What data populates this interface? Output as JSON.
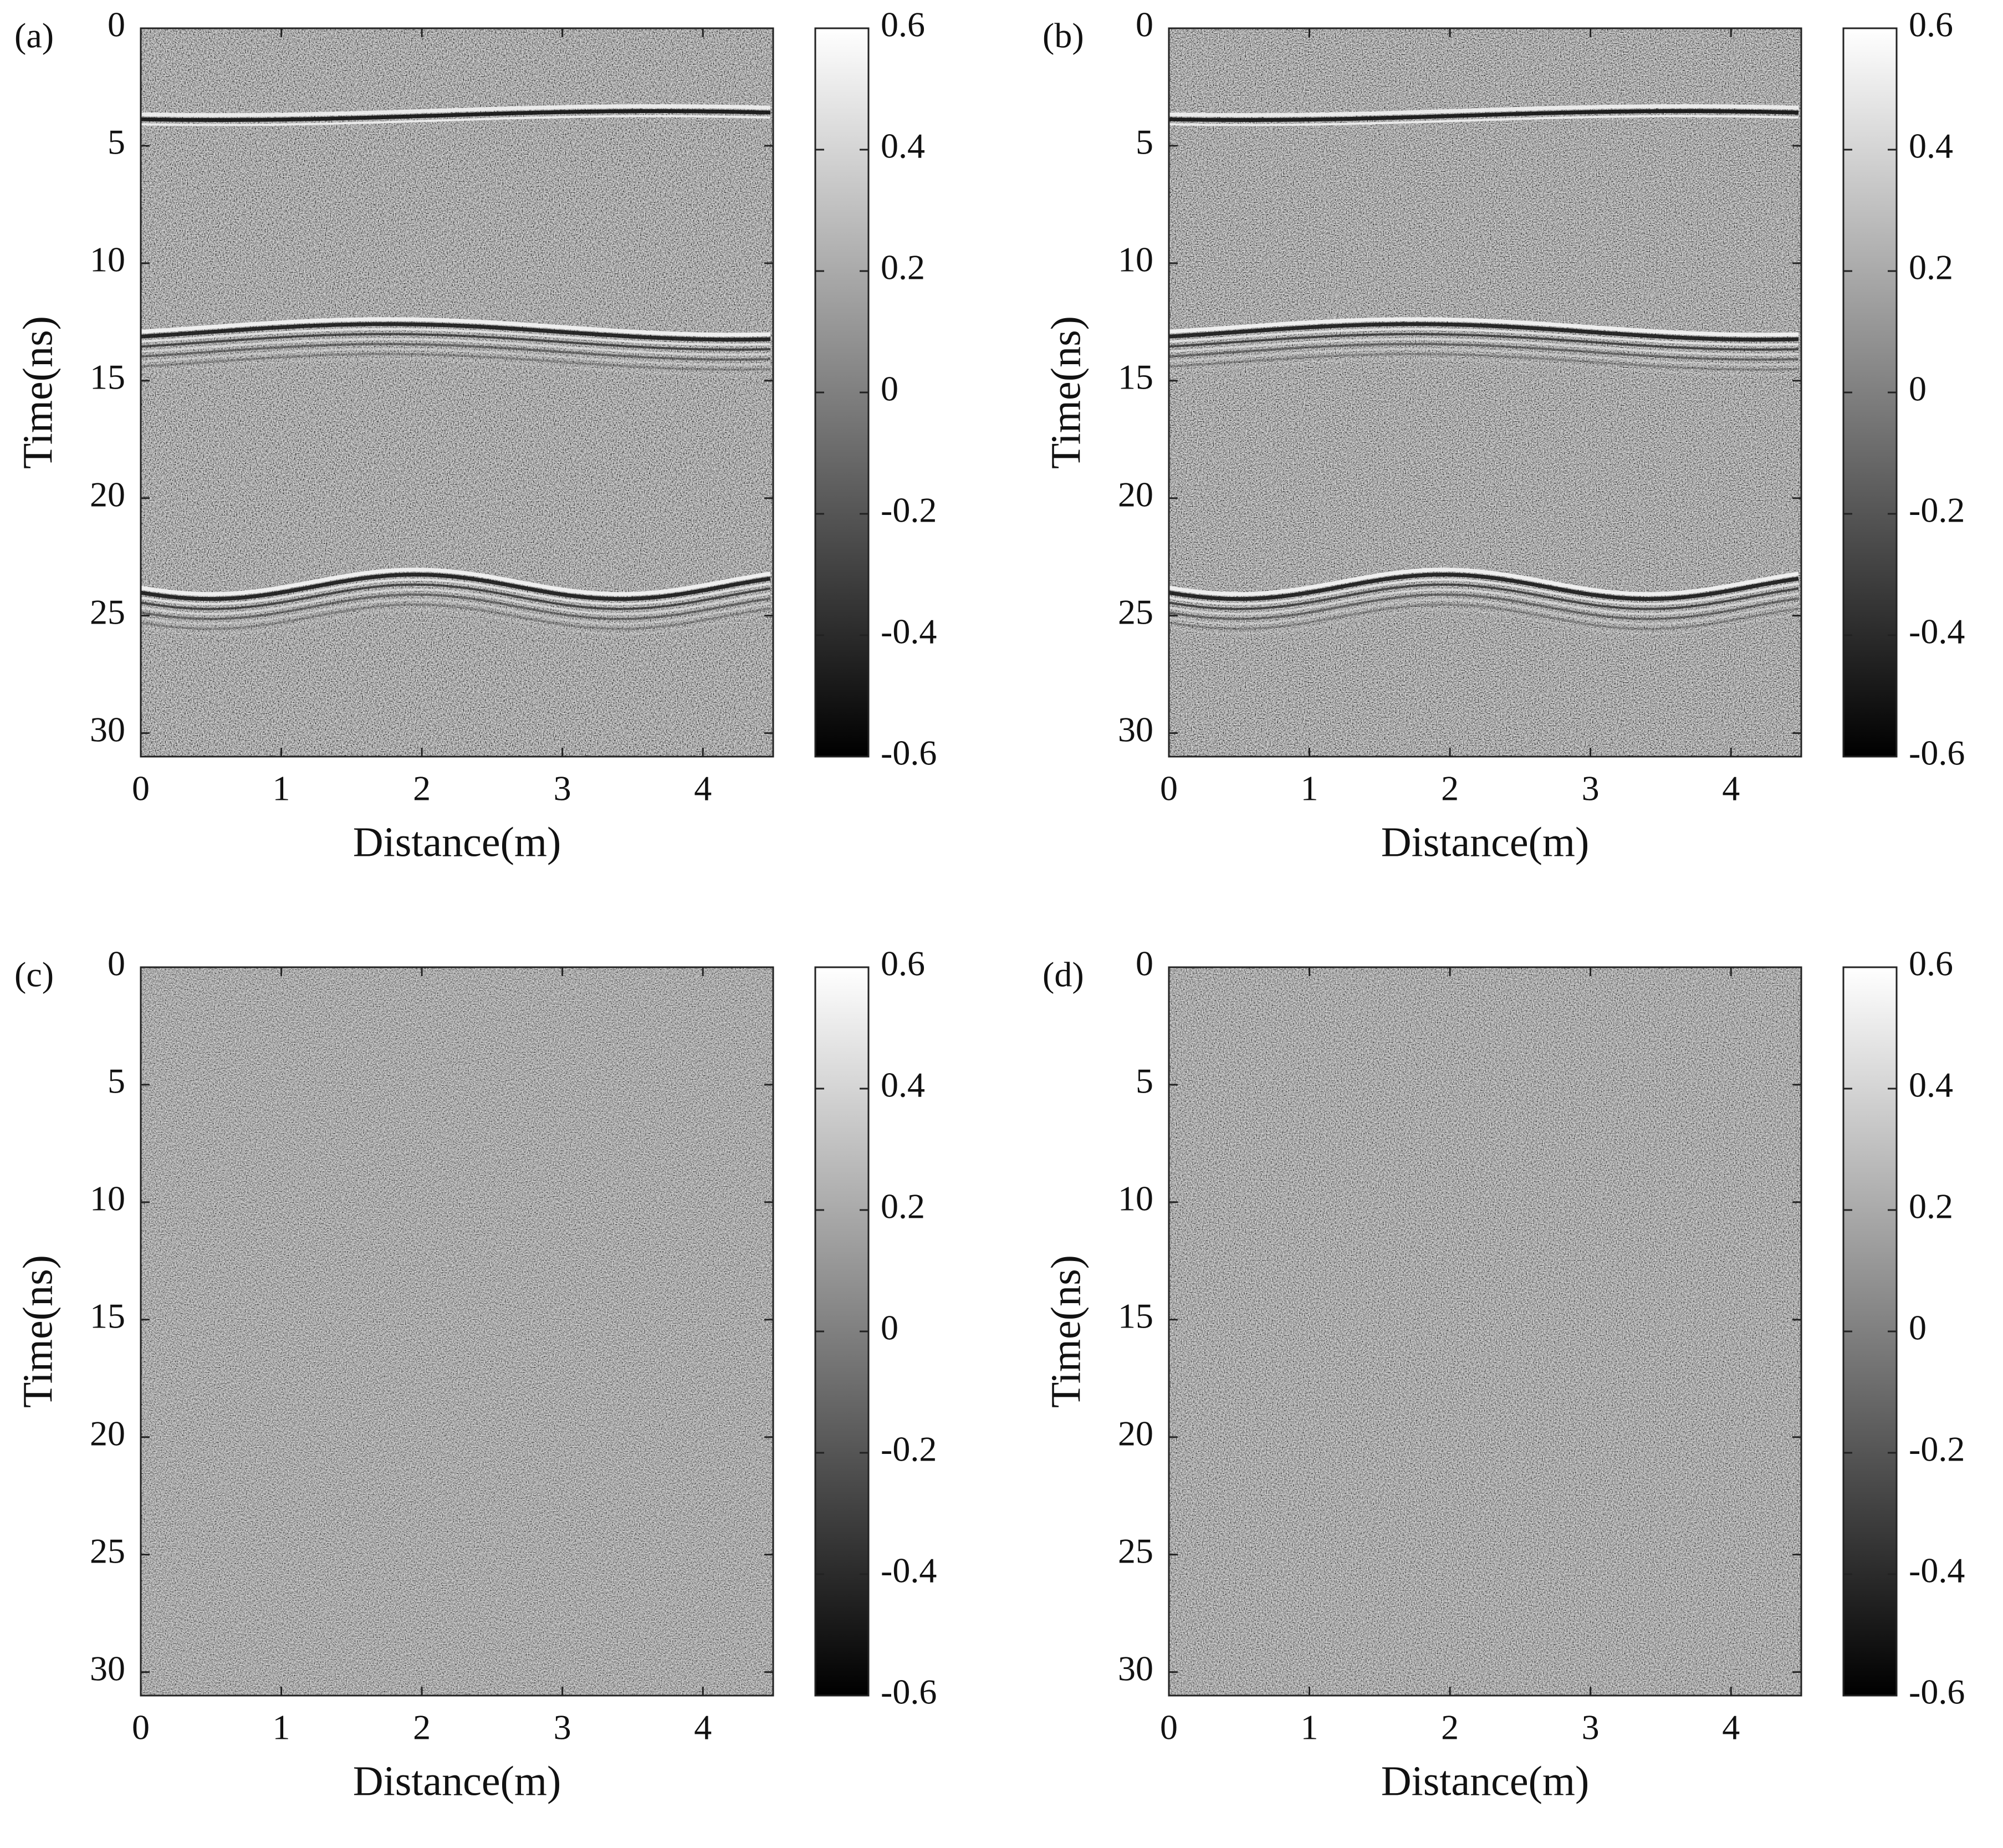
{
  "chart_data": [
    {
      "type": "heatmap",
      "panel_label": "(a)",
      "xlabel": "Distance(m)",
      "ylabel": "Time(ns)",
      "colormap": "gray",
      "xlim": [
        0,
        4.5
      ],
      "xticks": [
        0,
        1,
        2,
        3,
        4
      ],
      "ylim": [
        0,
        31
      ],
      "y_reversed": true,
      "yticks": [
        0,
        5,
        10,
        15,
        20,
        25,
        30
      ],
      "clim": [
        -0.6,
        0.6
      ],
      "cticks": [
        -0.6,
        -0.4,
        -0.2,
        0,
        0.2,
        0.4,
        0.6
      ]
    },
    {
      "type": "heatmap",
      "panel_label": "(b)",
      "xlabel": "Distance(m)",
      "ylabel": "Time(ns)",
      "colormap": "gray",
      "xlim": [
        0,
        4.5
      ],
      "xticks": [
        0,
        1,
        2,
        3,
        4
      ],
      "ylim": [
        0,
        31
      ],
      "y_reversed": true,
      "yticks": [
        0,
        5,
        10,
        15,
        20,
        25,
        30
      ],
      "clim": [
        -0.6,
        0.6
      ],
      "cticks": [
        -0.6,
        -0.4,
        -0.2,
        0,
        0.2,
        0.4,
        0.6
      ]
    },
    {
      "type": "heatmap",
      "panel_label": "(c)",
      "xlabel": "Distance(m)",
      "ylabel": "Time(ns)",
      "colormap": "gray",
      "xlim": [
        0,
        4.5
      ],
      "xticks": [
        0,
        1,
        2,
        3,
        4
      ],
      "ylim": [
        0,
        31
      ],
      "y_reversed": true,
      "yticks": [
        0,
        5,
        10,
        15,
        20,
        25,
        30
      ],
      "clim": [
        -0.6,
        0.6
      ],
      "cticks": [
        -0.6,
        -0.4,
        -0.2,
        0,
        0.2,
        0.4,
        0.6
      ]
    },
    {
      "type": "heatmap",
      "panel_label": "(d)",
      "xlabel": "Distance(m)",
      "ylabel": "Time(ns)",
      "colormap": "gray",
      "xlim": [
        0,
        4.5
      ],
      "xticks": [
        0,
        1,
        2,
        3,
        4
      ],
      "ylim": [
        0,
        31
      ],
      "y_reversed": true,
      "yticks": [
        0,
        5,
        10,
        15,
        20,
        25,
        30
      ],
      "clim": [
        -0.6,
        0.6
      ],
      "cticks": [
        -0.6,
        -0.4,
        -0.2,
        0,
        0.2,
        0.4,
        0.6
      ]
    }
  ]
}
